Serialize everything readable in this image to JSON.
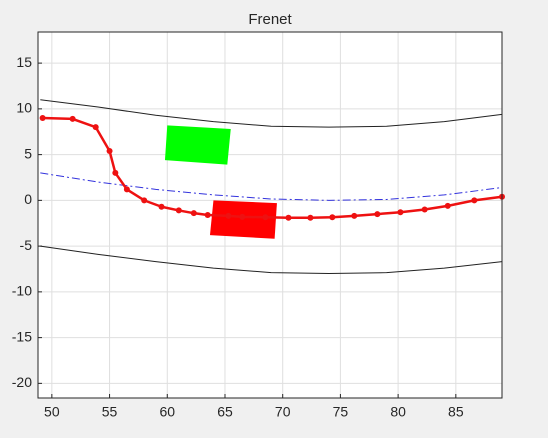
{
  "chart_data": {
    "type": "line",
    "title": "Frenet",
    "xlim": [
      48.8,
      89
    ],
    "ylim": [
      -21.6,
      18.4
    ],
    "xticks": [
      50,
      55,
      60,
      65,
      70,
      75,
      80,
      85
    ],
    "yticks": [
      -20,
      -15,
      -10,
      -5,
      0,
      5,
      10,
      15
    ],
    "grid": true,
    "series": [
      {
        "color": "#222222",
        "linestyle": "solid",
        "linewidth": 1,
        "x": [
          49,
          54,
          59,
          64,
          69,
          74,
          79,
          84,
          89
        ],
        "values": [
          11,
          10.2,
          9.3,
          8.6,
          8.1,
          8,
          8.1,
          8.6,
          9.4
        ]
      },
      {
        "color": "#222222",
        "linestyle": "solid",
        "linewidth": 1,
        "x": [
          49,
          54,
          59,
          64,
          69,
          74,
          79,
          84,
          89
        ],
        "values": [
          -5,
          -5.9,
          -6.7,
          -7.4,
          -7.9,
          -8,
          -7.9,
          -7.4,
          -6.7
        ]
      },
      {
        "color": "#3333dd",
        "linestyle": "dashdot",
        "linewidth": 1,
        "x": [
          49,
          54,
          59,
          64,
          69,
          74,
          79,
          84,
          89
        ],
        "values": [
          3,
          2,
          1.2,
          0.6,
          0.15,
          0,
          0.1,
          0.6,
          1.4
        ]
      },
      {
        "color": "#ee1111",
        "linestyle": "solid",
        "linewidth": 2.5,
        "marker": true,
        "x": [
          49.2,
          51.8,
          53.8,
          55,
          55.5,
          56.5,
          58,
          59.5,
          61,
          62.3,
          63.5,
          65.3,
          66.5,
          68.5,
          70.5,
          72.4,
          74.3,
          76.2,
          78.2,
          80.2,
          82.3,
          84.3,
          86.6,
          89
        ],
        "values": [
          9,
          8.9,
          8,
          5.4,
          3,
          1.2,
          0,
          -0.7,
          -1.1,
          -1.4,
          -1.6,
          -1.7,
          -1.8,
          -1.85,
          -1.9,
          -1.9,
          -1.85,
          -1.7,
          -1.5,
          -1.3,
          -1,
          -0.6,
          0,
          0.4
        ]
      }
    ],
    "obstacles": [
      {
        "color": "#00ff00",
        "x": [
          60,
          65.5,
          65.2,
          59.8
        ],
        "y": [
          8.2,
          7.8,
          3.9,
          4.4
        ]
      },
      {
        "color": "#ff0000",
        "x": [
          64,
          69.5,
          69.3,
          63.7
        ],
        "y": [
          0,
          -0.3,
          -4.2,
          -3.8
        ]
      }
    ]
  }
}
